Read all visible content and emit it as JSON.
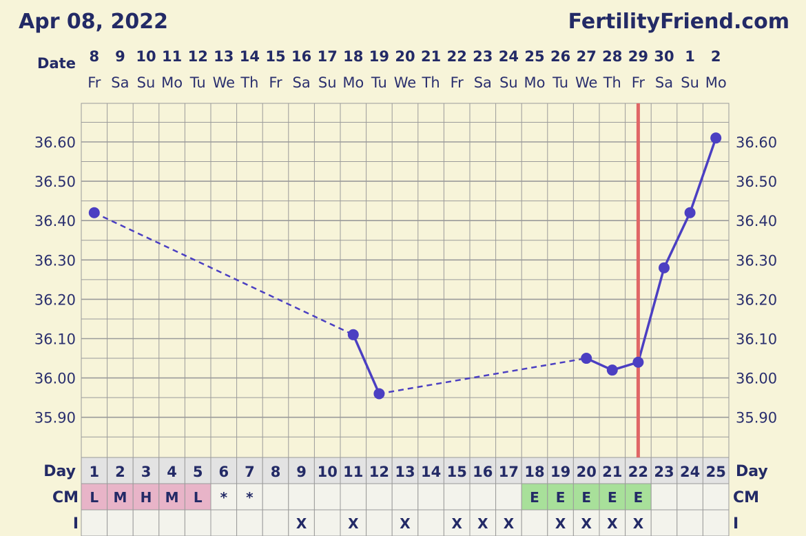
{
  "header": {
    "date": "Apr 08, 2022",
    "brand": "FertilityFriend.com"
  },
  "labels": {
    "date": "Date",
    "day": "Day",
    "cm": "CM",
    "i": "I"
  },
  "colors": {
    "line": "#4b3fc2",
    "marker": "#e06666",
    "cm_menses": "#e8b4c8",
    "cm_egg": "#a8e09a",
    "grid": "#9a9a9a",
    "plot_bg": "#f7f4d9",
    "row_bg": "#f3f3ec",
    "day_row_bg": "#e3e3e3"
  },
  "chart_data": {
    "type": "line",
    "title": "",
    "ylabel": "",
    "ylim": [
      35.8,
      36.7
    ],
    "yticks": [
      "36.60",
      "36.50",
      "36.40",
      "36.30",
      "36.20",
      "36.10",
      "36.00",
      "35.90"
    ],
    "ytick_values": [
      36.6,
      36.5,
      36.4,
      36.3,
      36.2,
      36.1,
      36.0,
      35.9
    ],
    "dates": [
      "8",
      "9",
      "10",
      "11",
      "12",
      "13",
      "14",
      "15",
      "16",
      "17",
      "18",
      "19",
      "20",
      "21",
      "22",
      "23",
      "24",
      "25",
      "26",
      "27",
      "28",
      "29",
      "30",
      "1",
      "2"
    ],
    "weekdays": [
      "Fr",
      "Sa",
      "Su",
      "Mo",
      "Tu",
      "We",
      "Th",
      "Fr",
      "Sa",
      "Su",
      "Mo",
      "Tu",
      "We",
      "Th",
      "Fr",
      "Sa",
      "Su",
      "Mo",
      "Tu",
      "We",
      "Th",
      "Fr",
      "Sa",
      "Su",
      "Mo"
    ],
    "cycle_days": [
      "1",
      "2",
      "3",
      "4",
      "5",
      "6",
      "7",
      "8",
      "9",
      "10",
      "11",
      "12",
      "13",
      "14",
      "15",
      "16",
      "17",
      "18",
      "19",
      "20",
      "21",
      "22",
      "23",
      "24",
      "25"
    ],
    "temps": [
      {
        "day": 1,
        "value": 36.42
      },
      {
        "day": 11,
        "value": 36.11
      },
      {
        "day": 12,
        "value": 35.96
      },
      {
        "day": 20,
        "value": 36.05
      },
      {
        "day": 21,
        "value": 36.02
      },
      {
        "day": 22,
        "value": 36.04
      },
      {
        "day": 23,
        "value": 36.28
      },
      {
        "day": 24,
        "value": 36.42
      },
      {
        "day": 25,
        "value": 36.61
      }
    ],
    "ovulation_line_day": 22,
    "cm": [
      "L",
      "M",
      "H",
      "M",
      "L",
      "*",
      "*",
      "",
      "",
      "",
      "",
      "",
      "",
      "",
      "",
      "",
      "",
      "E",
      "E",
      "E",
      "E",
      "E",
      "",
      "",
      ""
    ],
    "intercourse": [
      "",
      "",
      "",
      "",
      "",
      "",
      "",
      "",
      "X",
      "",
      "X",
      "",
      "X",
      "",
      "X",
      "X",
      "X",
      "",
      "X",
      "X",
      "X",
      "X",
      "",
      "",
      ""
    ],
    "grid": true
  }
}
